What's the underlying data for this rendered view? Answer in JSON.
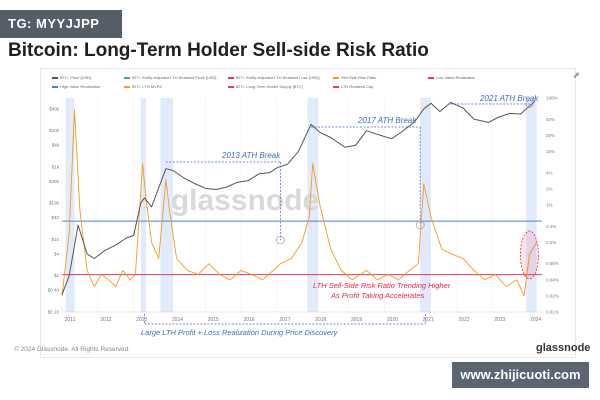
{
  "badge": {
    "text": "TG: MYYJJPP"
  },
  "page_title": "Bitcoin: Long-Term Holder Sell-side Risk Ratio",
  "watermark_center": "glassnode",
  "copyright": "© 2024 Glassnode. All Rights Reserved.",
  "brand": "glassnode",
  "site_watermark": "www.zhijicuoti.com",
  "colors": {
    "price": "#555555",
    "ratio": "#f39c1e",
    "high_value": "#4d7fd6",
    "low_value": "#e8385a",
    "band": "#c9d9f7",
    "label_blue": "#3f6cc2",
    "label_red": "#e8284a"
  },
  "chart_data": {
    "type": "line",
    "title": "Bitcoin: Long-Term Holder Sell-side Risk Ratio",
    "legend": [
      {
        "label": "BTC: Price [USD]",
        "color": "#555555"
      },
      {
        "label": "BTC: Entity-Adjusted LTH Realized Profit [USD]",
        "color": "#48b063"
      },
      {
        "label": "BTC: Entity-Adjusted LTH Realized Loss [USD]",
        "color": "#e8385a"
      },
      {
        "label": "Sell-Side Risk Ratio",
        "color": "#f39c1e"
      },
      {
        "label": "Low Value Realization",
        "color": "#e8385a"
      },
      {
        "label": "High Value Realization",
        "color": "#4d7fd6"
      },
      {
        "label": "BTC: LTH-MVRV",
        "color": "#f39c1e"
      },
      {
        "label": "BTC: Long-Term Holder Supply [BTC]",
        "color": "#e8385a"
      },
      {
        "label": "LTH Realized Cap",
        "color": "#e8385a"
      }
    ],
    "x_ticks": [
      "2011",
      "2012",
      "2013",
      "2014",
      "2015",
      "2016",
      "2017",
      "2018",
      "2019",
      "2020",
      "2021",
      "2022",
      "2023",
      "2024"
    ],
    "xlim": [
      2011,
      2024.4
    ],
    "y_left_ticks": [
      "$0.10",
      "$0.40",
      "$1",
      "$4",
      "$10",
      "$40",
      "$100",
      "$400",
      "$1k",
      "$4k",
      "$10k",
      "$40k"
    ],
    "y_right_ticks": [
      "0.01%",
      "0.02%",
      "0.04%",
      "0.08%",
      "0.2%",
      "0.4%",
      "1%",
      "2%",
      "4%",
      "10%",
      "20%",
      "40%",
      "100%"
    ],
    "y_left_scale": "log",
    "y_right_scale": "log",
    "thresholds": {
      "high_value_realization": 0.5,
      "low_value_realization": 0.05
    },
    "highlight_bands": [
      [
        2011.1,
        2011.35
      ],
      [
        2013.2,
        2013.35
      ],
      [
        2013.75,
        2014.1
      ],
      [
        2017.85,
        2018.15
      ],
      [
        2021.0,
        2021.3
      ],
      [
        2023.95,
        2024.25
      ]
    ],
    "series": [
      {
        "name": "BTC: Price [USD]",
        "axis": "left",
        "x": [
          2011.0,
          2011.2,
          2011.45,
          2011.7,
          2011.9,
          2012.2,
          2012.5,
          2012.8,
          2013.0,
          2013.2,
          2013.3,
          2013.5,
          2013.9,
          2014.1,
          2014.4,
          2014.7,
          2015.0,
          2015.3,
          2015.6,
          2015.9,
          2016.2,
          2016.5,
          2016.8,
          2017.0,
          2017.3,
          2017.6,
          2017.95,
          2018.2,
          2018.5,
          2018.9,
          2019.2,
          2019.5,
          2019.8,
          2020.2,
          2020.5,
          2020.85,
          2021.1,
          2021.3,
          2021.55,
          2021.85,
          2022.2,
          2022.5,
          2022.9,
          2023.2,
          2023.5,
          2023.8,
          2024.0,
          2024.2
        ],
        "y": [
          0.3,
          1,
          25,
          4,
          3,
          5,
          7,
          11,
          13,
          100,
          140,
          80,
          900,
          800,
          500,
          350,
          260,
          240,
          280,
          380,
          420,
          650,
          700,
          950,
          1200,
          2700,
          15000,
          9000,
          6500,
          3500,
          4000,
          10000,
          8000,
          6000,
          9500,
          18000,
          40000,
          57000,
          34000,
          60000,
          42000,
          21000,
          17000,
          24000,
          30000,
          29000,
          43000,
          65000
        ]
      },
      {
        "name": "Sell-Side Risk Ratio",
        "axis": "right",
        "x": [
          2011.0,
          2011.2,
          2011.35,
          2011.5,
          2011.7,
          2011.9,
          2012.1,
          2012.3,
          2012.5,
          2012.7,
          2012.9,
          2013.05,
          2013.25,
          2013.35,
          2013.5,
          2013.7,
          2013.9,
          2014.0,
          2014.2,
          2014.5,
          2014.8,
          2015.1,
          2015.4,
          2015.7,
          2016.0,
          2016.3,
          2016.6,
          2016.9,
          2017.1,
          2017.4,
          2017.7,
          2017.9,
          2018.0,
          2018.2,
          2018.5,
          2018.8,
          2019.1,
          2019.5,
          2019.8,
          2020.1,
          2020.4,
          2020.7,
          2020.95,
          2021.1,
          2021.3,
          2021.6,
          2021.9,
          2022.2,
          2022.5,
          2022.8,
          2023.1,
          2023.4,
          2023.7,
          2023.9,
          2024.05,
          2024.25
        ],
        "y": [
          0.02,
          0.3,
          60,
          0.8,
          0.06,
          0.03,
          0.05,
          0.04,
          0.03,
          0.06,
          0.04,
          0.05,
          6,
          1.2,
          0.2,
          0.1,
          3,
          0.8,
          0.1,
          0.06,
          0.05,
          0.08,
          0.05,
          0.04,
          0.06,
          0.05,
          0.04,
          0.06,
          0.08,
          0.1,
          0.2,
          0.6,
          6,
          1,
          0.15,
          0.06,
          0.04,
          0.06,
          0.04,
          0.05,
          0.04,
          0.06,
          0.08,
          2.5,
          0.6,
          0.15,
          0.12,
          0.1,
          0.06,
          0.04,
          0.05,
          0.03,
          0.04,
          0.02,
          0.12,
          0.2
        ]
      }
    ],
    "annotations": [
      {
        "text": "2013 ATH Break",
        "color": "#3f6cc2"
      },
      {
        "text": "2017 ATH Break",
        "color": "#3f6cc2"
      },
      {
        "text": "2021 ATH Break",
        "color": "#3f6cc2"
      },
      {
        "text": "LTH Sell-Side Risk Ratio Trending Higher",
        "color": "#e8284a"
      },
      {
        "text": "As Profit Taking Accelerates",
        "color": "#e8284a"
      },
      {
        "text": "Large LTH Profit + Loss Realization During Price Discovery",
        "color": "#3f6cc2"
      }
    ]
  }
}
